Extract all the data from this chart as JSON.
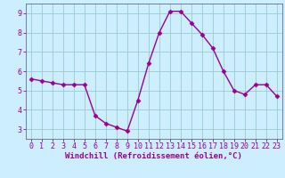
{
  "x": [
    0,
    1,
    2,
    3,
    4,
    5,
    6,
    7,
    8,
    9,
    10,
    11,
    12,
    13,
    14,
    15,
    16,
    17,
    18,
    19,
    20,
    21,
    22,
    23
  ],
  "y": [
    5.6,
    5.5,
    5.4,
    5.3,
    5.3,
    5.3,
    3.7,
    3.3,
    3.1,
    2.9,
    4.5,
    6.4,
    8.0,
    9.1,
    9.1,
    8.5,
    7.9,
    7.2,
    6.0,
    5.0,
    4.8,
    5.3,
    5.3,
    4.7
  ],
  "line_color": "#990099",
  "marker": "D",
  "marker_size": 2.5,
  "bg_color": "#cceeff",
  "grid_color": "#99cccc",
  "xlabel": "Windchill (Refroidissement éolien,°C)",
  "xlabel_color": "#990099",
  "xlabel_fontsize": 6.5,
  "ylim": [
    2.5,
    9.5
  ],
  "xlim": [
    -0.5,
    23.5
  ],
  "yticks": [
    3,
    4,
    5,
    6,
    7,
    8,
    9
  ],
  "xticks": [
    0,
    1,
    2,
    3,
    4,
    5,
    6,
    7,
    8,
    9,
    10,
    11,
    12,
    13,
    14,
    15,
    16,
    17,
    18,
    19,
    20,
    21,
    22,
    23
  ],
  "tick_color": "#990099",
  "tick_fontsize": 6.0,
  "spine_color": "#666699",
  "line_width": 1.0
}
